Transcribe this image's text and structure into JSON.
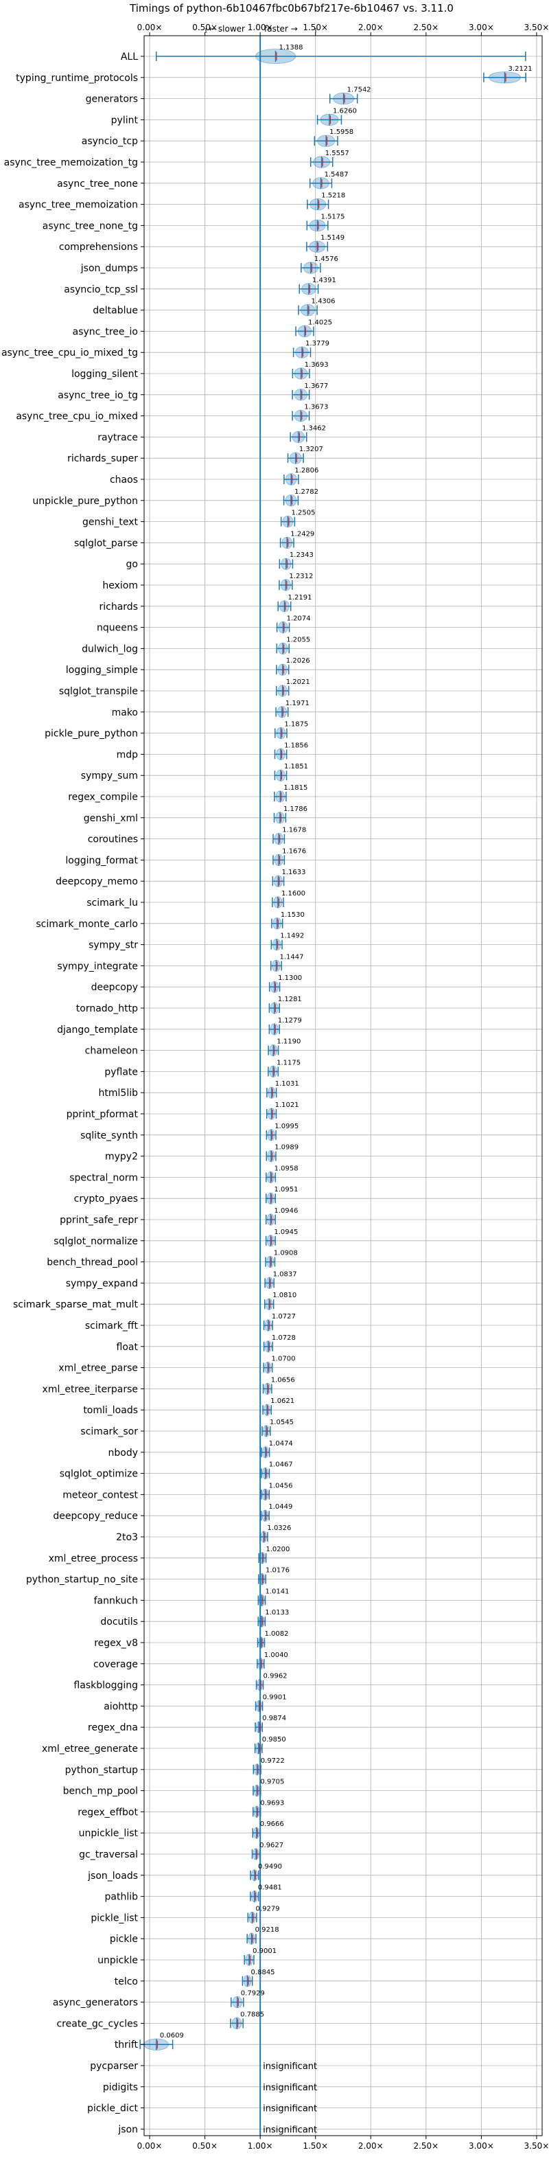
{
  "chart_data": {
    "type": "violin",
    "title": "Timings of python-6b10467fbc0b67bf217e-6b10467 vs. 3.11.0",
    "direction_labels": {
      "slower": "← slower",
      "faster": "faster →"
    },
    "x_ticks": [
      0,
      0.5,
      1,
      1.5,
      2,
      2.5,
      3,
      3.5
    ],
    "x_tick_labels": [
      "0.00×",
      "0.50×",
      "1.00×",
      "1.50×",
      "2.00×",
      "2.50×",
      "3.00×",
      "3.50×"
    ],
    "xlim": [
      -0.05,
      3.55
    ],
    "reference_line": 1.0,
    "grid": true,
    "insignificant_label": "insignificant",
    "benchmarks": [
      {
        "name": "ALL",
        "value": 1.1388,
        "label": "1.1388"
      },
      {
        "name": "typing_runtime_protocols",
        "value": 3.2121,
        "label": "3.2121"
      },
      {
        "name": "generators",
        "value": 1.7542,
        "label": "1.7542"
      },
      {
        "name": "pylint",
        "value": 1.626,
        "label": "1.6260"
      },
      {
        "name": "asyncio_tcp",
        "value": 1.5958,
        "label": "1.5958"
      },
      {
        "name": "async_tree_memoization_tg",
        "value": 1.5557,
        "label": "1.5557"
      },
      {
        "name": "async_tree_none",
        "value": 1.5487,
        "label": "1.5487"
      },
      {
        "name": "async_tree_memoization",
        "value": 1.5218,
        "label": "1.5218"
      },
      {
        "name": "async_tree_none_tg",
        "value": 1.5175,
        "label": "1.5175"
      },
      {
        "name": "comprehensions",
        "value": 1.5149,
        "label": "1.5149"
      },
      {
        "name": "json_dumps",
        "value": 1.4576,
        "label": "1.4576"
      },
      {
        "name": "asyncio_tcp_ssl",
        "value": 1.4391,
        "label": "1.4391"
      },
      {
        "name": "deltablue",
        "value": 1.4306,
        "label": "1.4306"
      },
      {
        "name": "async_tree_io",
        "value": 1.4025,
        "label": "1.4025"
      },
      {
        "name": "async_tree_cpu_io_mixed_tg",
        "value": 1.3779,
        "label": "1.3779"
      },
      {
        "name": "logging_silent",
        "value": 1.3693,
        "label": "1.3693"
      },
      {
        "name": "async_tree_io_tg",
        "value": 1.3677,
        "label": "1.3677"
      },
      {
        "name": "async_tree_cpu_io_mixed",
        "value": 1.3673,
        "label": "1.3673"
      },
      {
        "name": "raytrace",
        "value": 1.3462,
        "label": "1.3462"
      },
      {
        "name": "richards_super",
        "value": 1.3207,
        "label": "1.3207"
      },
      {
        "name": "chaos",
        "value": 1.2806,
        "label": "1.2806"
      },
      {
        "name": "unpickle_pure_python",
        "value": 1.2782,
        "label": "1.2782"
      },
      {
        "name": "genshi_text",
        "value": 1.2505,
        "label": "1.2505"
      },
      {
        "name": "sqlglot_parse",
        "value": 1.2429,
        "label": "1.2429"
      },
      {
        "name": "go",
        "value": 1.2343,
        "label": "1.2343"
      },
      {
        "name": "hexiom",
        "value": 1.2312,
        "label": "1.2312"
      },
      {
        "name": "richards",
        "value": 1.2191,
        "label": "1.2191"
      },
      {
        "name": "nqueens",
        "value": 1.2074,
        "label": "1.2074"
      },
      {
        "name": "dulwich_log",
        "value": 1.2055,
        "label": "1.2055"
      },
      {
        "name": "logging_simple",
        "value": 1.2026,
        "label": "1.2026"
      },
      {
        "name": "sqlglot_transpile",
        "value": 1.2021,
        "label": "1.2021"
      },
      {
        "name": "mako",
        "value": 1.1971,
        "label": "1.1971"
      },
      {
        "name": "pickle_pure_python",
        "value": 1.1875,
        "label": "1.1875"
      },
      {
        "name": "mdp",
        "value": 1.1856,
        "label": "1.1856"
      },
      {
        "name": "sympy_sum",
        "value": 1.1851,
        "label": "1.1851"
      },
      {
        "name": "regex_compile",
        "value": 1.1815,
        "label": "1.1815"
      },
      {
        "name": "genshi_xml",
        "value": 1.1786,
        "label": "1.1786"
      },
      {
        "name": "coroutines",
        "value": 1.1678,
        "label": "1.1678"
      },
      {
        "name": "logging_format",
        "value": 1.1676,
        "label": "1.1676"
      },
      {
        "name": "deepcopy_memo",
        "value": 1.1633,
        "label": "1.1633"
      },
      {
        "name": "scimark_lu",
        "value": 1.16,
        "label": "1.1600"
      },
      {
        "name": "scimark_monte_carlo",
        "value": 1.153,
        "label": "1.1530"
      },
      {
        "name": "sympy_str",
        "value": 1.1492,
        "label": "1.1492"
      },
      {
        "name": "sympy_integrate",
        "value": 1.1447,
        "label": "1.1447"
      },
      {
        "name": "deepcopy",
        "value": 1.13,
        "label": "1.1300"
      },
      {
        "name": "tornado_http",
        "value": 1.1281,
        "label": "1.1281"
      },
      {
        "name": "django_template",
        "value": 1.1279,
        "label": "1.1279"
      },
      {
        "name": "chameleon",
        "value": 1.119,
        "label": "1.1190"
      },
      {
        "name": "pyflate",
        "value": 1.1175,
        "label": "1.1175"
      },
      {
        "name": "html5lib",
        "value": 1.1031,
        "label": "1.1031"
      },
      {
        "name": "pprint_pformat",
        "value": 1.1021,
        "label": "1.1021"
      },
      {
        "name": "sqlite_synth",
        "value": 1.0995,
        "label": "1.0995"
      },
      {
        "name": "mypy2",
        "value": 1.0989,
        "label": "1.0989"
      },
      {
        "name": "spectral_norm",
        "value": 1.0958,
        "label": "1.0958"
      },
      {
        "name": "crypto_pyaes",
        "value": 1.0951,
        "label": "1.0951"
      },
      {
        "name": "pprint_safe_repr",
        "value": 1.0946,
        "label": "1.0946"
      },
      {
        "name": "sqlglot_normalize",
        "value": 1.0945,
        "label": "1.0945"
      },
      {
        "name": "bench_thread_pool",
        "value": 1.0908,
        "label": "1.0908"
      },
      {
        "name": "sympy_expand",
        "value": 1.0837,
        "label": "1.0837"
      },
      {
        "name": "scimark_sparse_mat_mult",
        "value": 1.081,
        "label": "1.0810"
      },
      {
        "name": "scimark_fft",
        "value": 1.0727,
        "label": "1.0727"
      },
      {
        "name": "float",
        "value": 1.0728,
        "label": "1.0728"
      },
      {
        "name": "xml_etree_parse",
        "value": 1.07,
        "label": "1.0700"
      },
      {
        "name": "xml_etree_iterparse",
        "value": 1.0656,
        "label": "1.0656"
      },
      {
        "name": "tomli_loads",
        "value": 1.0621,
        "label": "1.0621"
      },
      {
        "name": "scimark_sor",
        "value": 1.0545,
        "label": "1.0545"
      },
      {
        "name": "nbody",
        "value": 1.0474,
        "label": "1.0474"
      },
      {
        "name": "sqlglot_optimize",
        "value": 1.0467,
        "label": "1.0467"
      },
      {
        "name": "meteor_contest",
        "value": 1.0456,
        "label": "1.0456"
      },
      {
        "name": "deepcopy_reduce",
        "value": 1.0449,
        "label": "1.0449"
      },
      {
        "name": "2to3",
        "value": 1.0326,
        "label": "1.0326"
      },
      {
        "name": "xml_etree_process",
        "value": 1.02,
        "label": "1.0200"
      },
      {
        "name": "python_startup_no_site",
        "value": 1.0176,
        "label": "1.0176"
      },
      {
        "name": "fannkuch",
        "value": 1.0141,
        "label": "1.0141"
      },
      {
        "name": "docutils",
        "value": 1.0133,
        "label": "1.0133"
      },
      {
        "name": "regex_v8",
        "value": 1.0082,
        "label": "1.0082"
      },
      {
        "name": "coverage",
        "value": 1.004,
        "label": "1.0040"
      },
      {
        "name": "flaskblogging",
        "value": 0.9962,
        "label": "0.9962"
      },
      {
        "name": "aiohttp",
        "value": 0.9901,
        "label": "0.9901"
      },
      {
        "name": "regex_dna",
        "value": 0.9874,
        "label": "0.9874"
      },
      {
        "name": "xml_etree_generate",
        "value": 0.985,
        "label": "0.9850"
      },
      {
        "name": "python_startup",
        "value": 0.9722,
        "label": "0.9722"
      },
      {
        "name": "bench_mp_pool",
        "value": 0.9705,
        "label": "0.9705"
      },
      {
        "name": "regex_effbot",
        "value": 0.9693,
        "label": "0.9693"
      },
      {
        "name": "unpickle_list",
        "value": 0.9666,
        "label": "0.9666"
      },
      {
        "name": "gc_traversal",
        "value": 0.9627,
        "label": "0.9627"
      },
      {
        "name": "json_loads",
        "value": 0.949,
        "label": "0.9490"
      },
      {
        "name": "pathlib",
        "value": 0.9481,
        "label": "0.9481"
      },
      {
        "name": "pickle_list",
        "value": 0.9279,
        "label": "0.9279"
      },
      {
        "name": "pickle",
        "value": 0.9218,
        "label": "0.9218"
      },
      {
        "name": "unpickle",
        "value": 0.9001,
        "label": "0.9001"
      },
      {
        "name": "telco",
        "value": 0.8845,
        "label": "0.8845"
      },
      {
        "name": "async_generators",
        "value": 0.7929,
        "label": "0.7929"
      },
      {
        "name": "create_gc_cycles",
        "value": 0.7885,
        "label": "0.7885"
      },
      {
        "name": "thrift",
        "value": 0.0609,
        "label": "0.0609"
      },
      {
        "name": "pycparser",
        "value": null,
        "label": null
      },
      {
        "name": "pidigits",
        "value": null,
        "label": null
      },
      {
        "name": "pickle_dict",
        "value": null,
        "label": null
      },
      {
        "name": "json",
        "value": null,
        "label": null
      }
    ]
  },
  "colors": {
    "violin": "#1f77b4",
    "violin_fill_opacity": 0.3,
    "median": "#ff0000",
    "grid": "#b0b0b0",
    "reference_line": "#1f77b4",
    "text": "#000000"
  }
}
